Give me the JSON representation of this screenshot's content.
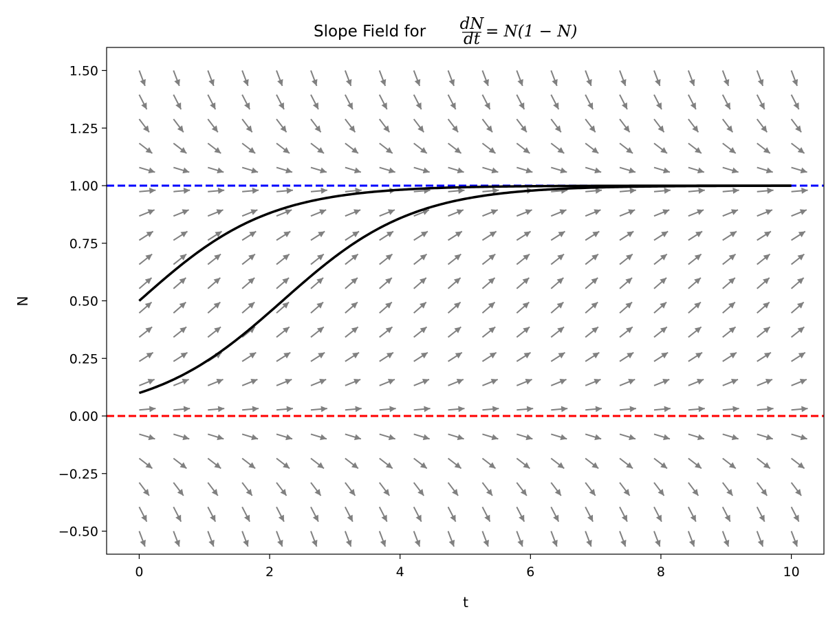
{
  "chart_data": {
    "type": "line",
    "title_prefix": "Slope Field for ",
    "title_math": {
      "numerator": "dN",
      "denominator": "dt",
      "rhs": "= N(1 − N)"
    },
    "xlabel": "t",
    "ylabel": "N",
    "xlim": [
      -0.5,
      10.5
    ],
    "ylim": [
      -0.6,
      1.6
    ],
    "xticks": [
      0,
      2,
      4,
      6,
      8,
      10
    ],
    "xtick_labels": [
      "0",
      "2",
      "4",
      "6",
      "8",
      "10"
    ],
    "yticks": [
      -0.5,
      -0.25,
      0,
      0.25,
      0.5,
      0.75,
      1.0,
      1.25,
      1.5
    ],
    "ytick_labels": [
      "−0.50",
      "−0.25",
      "0.00",
      "0.25",
      "0.50",
      "0.75",
      "1.00",
      "1.25",
      "1.50"
    ],
    "grid": false,
    "slope_field": {
      "equation": "N(1-N)",
      "t_values": [
        0,
        0.526,
        1.053,
        1.579,
        2.105,
        2.632,
        3.158,
        3.684,
        4.211,
        4.737,
        5.263,
        5.789,
        6.316,
        6.842,
        7.368,
        7.895,
        8.421,
        8.947,
        9.474,
        10
      ],
      "n_values": [
        -0.5,
        -0.395,
        -0.289,
        -0.184,
        -0.079,
        0.026,
        0.132,
        0.237,
        0.342,
        0.447,
        0.553,
        0.658,
        0.763,
        0.868,
        0.974,
        1.079,
        1.184,
        1.289,
        1.395,
        1.5
      ],
      "color": "#808080"
    },
    "equilibria": [
      {
        "n": 1.0,
        "color": "#0000ff",
        "style": "dashed"
      },
      {
        "n": 0.0,
        "color": "#ff0000",
        "style": "dashed"
      }
    ],
    "solutions": [
      {
        "n0": 0.5,
        "t_range": [
          0,
          10
        ],
        "color": "#000000"
      },
      {
        "n0": 0.1,
        "t_range": [
          0,
          10
        ],
        "color": "#000000"
      }
    ]
  }
}
